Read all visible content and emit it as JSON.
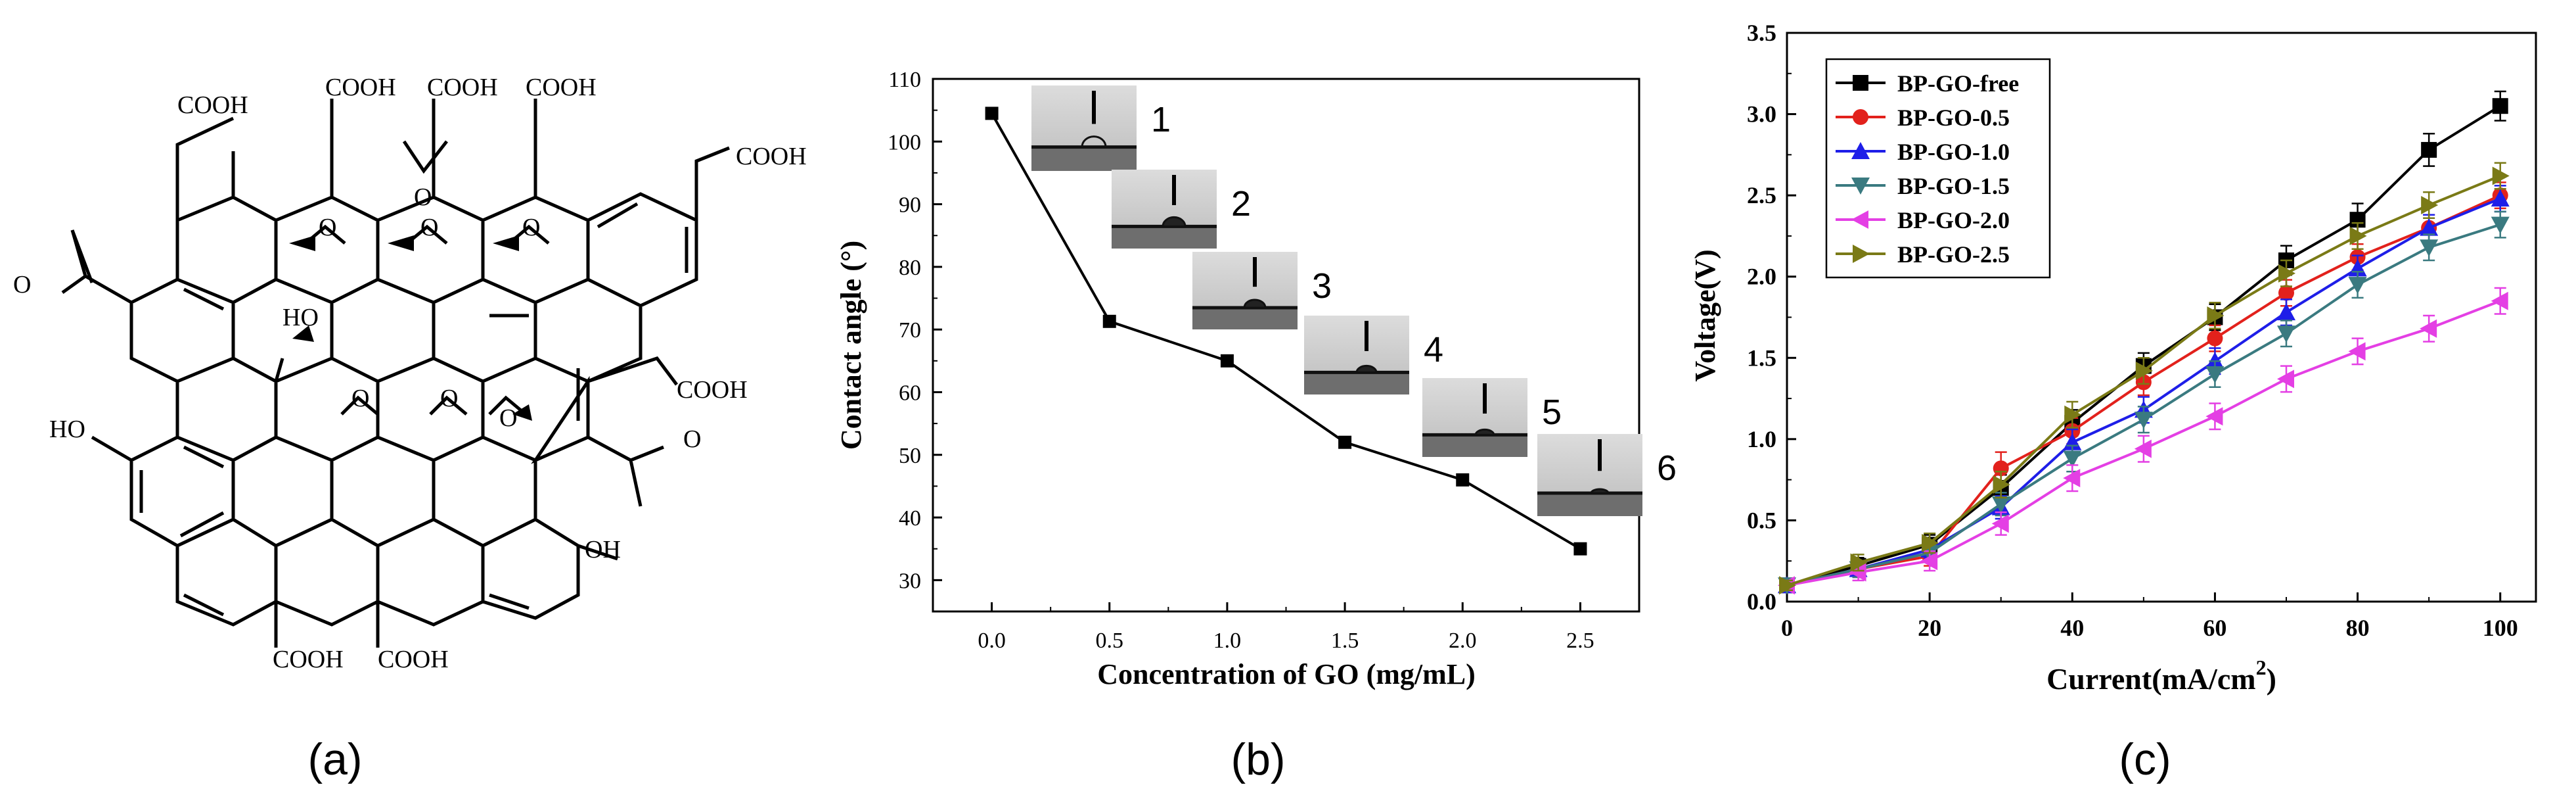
{
  "panel_labels": [
    "(a)",
    "(b)",
    "(c)"
  ],
  "structure": {
    "groups": [
      "COOH",
      "COOH",
      "COOH",
      "COOH",
      "COOH",
      "COOH",
      "COOH",
      "COOH",
      "HO",
      "HO",
      "OH",
      "O",
      "O"
    ],
    "epoxide_label": "O"
  },
  "chart_data": [
    {
      "type": "line",
      "panel": "b",
      "xlabel": "Concentration of GO (mg/mL)",
      "ylabel": "Contact angle (°)",
      "xlim": [
        -0.25,
        2.75
      ],
      "ylim": [
        25,
        110
      ],
      "xticks": [
        "0.0",
        "0.5",
        "1.0",
        "1.5",
        "2.0",
        "2.5"
      ],
      "yticks": [
        "30",
        "40",
        "50",
        "60",
        "70",
        "80",
        "90",
        "100",
        "110"
      ],
      "x": [
        0.0,
        0.5,
        1.0,
        1.5,
        2.0,
        2.5
      ],
      "values": [
        104.5,
        71.3,
        65,
        52,
        46,
        35
      ],
      "inset_labels": [
        "1",
        "2",
        "3",
        "4",
        "5",
        "6"
      ]
    },
    {
      "type": "line",
      "panel": "c",
      "xlabel": "Current(mA/cm",
      "xlabel_sup": "2",
      "xlabel_close": ")",
      "ylabel": "Voltage(V)",
      "xlim": [
        0,
        105
      ],
      "ylim": [
        0,
        3.5
      ],
      "xticks": [
        "0",
        "20",
        "40",
        "60",
        "80",
        "100"
      ],
      "yticks": [
        "0.0",
        "0.5",
        "1.0",
        "1.5",
        "2.0",
        "2.5",
        "3.0",
        "3.5"
      ],
      "x": [
        0,
        10,
        20,
        30,
        40,
        50,
        60,
        70,
        80,
        90,
        100
      ],
      "legend_position": "top-left",
      "series": [
        {
          "name": "BP-GO-free",
          "color": "#000000",
          "marker": "square",
          "values": [
            0.1,
            0.22,
            0.35,
            0.7,
            1.1,
            1.45,
            1.75,
            2.1,
            2.35,
            2.78,
            3.05
          ],
          "errors": [
            0.03,
            0.05,
            0.06,
            0.08,
            0.08,
            0.08,
            0.08,
            0.09,
            0.1,
            0.1,
            0.09
          ]
        },
        {
          "name": "BP-GO-0.5",
          "color": "#e2211c",
          "marker": "circle",
          "values": [
            0.1,
            0.2,
            0.28,
            0.82,
            1.05,
            1.35,
            1.62,
            1.9,
            2.12,
            2.3,
            2.5
          ],
          "errors": [
            0.03,
            0.05,
            0.06,
            0.1,
            0.08,
            0.08,
            0.08,
            0.08,
            0.08,
            0.08,
            0.08
          ]
        },
        {
          "name": "BP-GO-1.0",
          "color": "#1e1ee8",
          "marker": "triangle-up",
          "values": [
            0.1,
            0.2,
            0.32,
            0.58,
            0.98,
            1.18,
            1.48,
            1.78,
            2.05,
            2.3,
            2.48
          ],
          "errors": [
            0.03,
            0.05,
            0.05,
            0.07,
            0.08,
            0.08,
            0.08,
            0.08,
            0.08,
            0.08,
            0.08
          ]
        },
        {
          "name": "BP-GO-1.5",
          "color": "#3a7a80",
          "marker": "triangle-down",
          "values": [
            0.1,
            0.2,
            0.3,
            0.6,
            0.88,
            1.12,
            1.4,
            1.65,
            1.95,
            2.18,
            2.32
          ],
          "errors": [
            0.03,
            0.05,
            0.05,
            0.07,
            0.08,
            0.08,
            0.08,
            0.08,
            0.08,
            0.08,
            0.08
          ]
        },
        {
          "name": "BP-GO-2.0",
          "color": "#e43fe4",
          "marker": "triangle-left",
          "values": [
            0.1,
            0.18,
            0.25,
            0.48,
            0.76,
            0.94,
            1.14,
            1.37,
            1.54,
            1.68,
            1.85
          ],
          "errors": [
            0.03,
            0.05,
            0.06,
            0.07,
            0.08,
            0.08,
            0.08,
            0.08,
            0.08,
            0.08,
            0.08
          ]
        },
        {
          "name": "BP-GO-2.5",
          "color": "#7a7a16",
          "marker": "triangle-right",
          "values": [
            0.1,
            0.24,
            0.36,
            0.72,
            1.15,
            1.42,
            1.76,
            2.02,
            2.25,
            2.44,
            2.62
          ],
          "errors": [
            0.03,
            0.05,
            0.06,
            0.08,
            0.08,
            0.08,
            0.08,
            0.08,
            0.08,
            0.08,
            0.08
          ]
        }
      ]
    }
  ]
}
